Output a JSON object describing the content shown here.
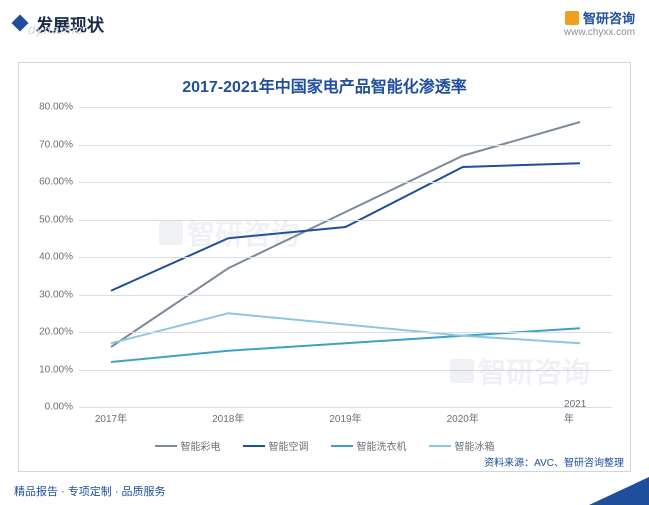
{
  "header": {
    "title": "发展现状",
    "subtitle": "dynamic"
  },
  "brand": {
    "name": "智研咨询",
    "url": "www.chyxx.com"
  },
  "chart": {
    "type": "line",
    "title": "2017-2021年中国家电产品智能化渗透率",
    "categories": [
      "2017年",
      "2018年",
      "2019年",
      "2020年",
      "2021年"
    ],
    "ylim": [
      0,
      80
    ],
    "ytick_step": 10,
    "ytick_format_suffix": ".00%",
    "grid_color": "#d9dde4",
    "axis_font_color": "#6b6f78",
    "axis_font_size": 10,
    "title_color": "#1f4e9c",
    "title_fontsize": 16,
    "background_color": "#ffffff",
    "border_color": "#cfd6e2",
    "line_width": 2,
    "series": [
      {
        "name": "智能彩电",
        "color": "#7d8a99",
        "values": [
          16,
          37,
          52,
          67,
          76
        ]
      },
      {
        "name": "智能空调",
        "color": "#1f4e9c",
        "values": [
          31,
          45,
          48,
          64,
          65
        ]
      },
      {
        "name": "智能洗衣机",
        "color": "#3ea0c9",
        "values": [
          12,
          15,
          17,
          19,
          21
        ]
      },
      {
        "name": "智能冰箱",
        "color": "#8fc7e2",
        "values": [
          17,
          25,
          22,
          19,
          17
        ]
      }
    ],
    "source": "资料来源：AVC、智研咨询整理",
    "watermark": "智研咨询"
  },
  "footer": {
    "text": "精品报告 · 专项定制 · 品质服务"
  }
}
